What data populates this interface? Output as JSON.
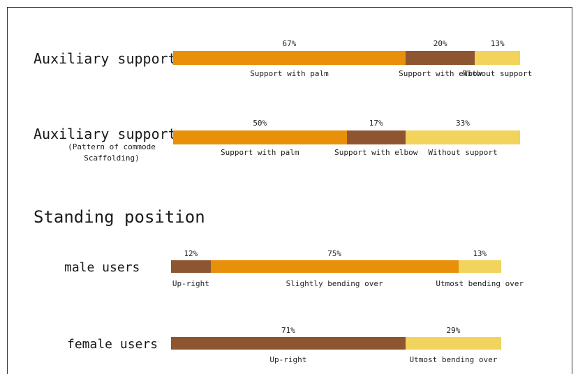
{
  "section_title": "Standing position",
  "colors": {
    "orange": "#E8900A",
    "brown": "#8E5630",
    "yellow": "#F2D35C"
  },
  "chart_data": [
    {
      "type": "bar",
      "orientation": "horizontal-stacked-100",
      "row_label": "Auxiliary support",
      "row_sublabel": "",
      "categories": [
        "Support with palm",
        "Support with elbow",
        "Without support"
      ],
      "values": [
        67,
        20,
        13
      ],
      "value_labels": [
        "67%",
        "20%",
        "13%"
      ],
      "colors": [
        "orange",
        "brown",
        "yellow"
      ]
    },
    {
      "type": "bar",
      "orientation": "horizontal-stacked-100",
      "row_label": "Auxiliary support",
      "row_sublabel": "(Pattern of commode Scaffolding)",
      "categories": [
        "Support with palm",
        "Support with elbow",
        "Without support"
      ],
      "values": [
        50,
        17,
        33
      ],
      "value_labels": [
        "50%",
        "17%",
        "33%"
      ],
      "colors": [
        "orange",
        "brown",
        "yellow"
      ]
    },
    {
      "type": "bar",
      "orientation": "horizontal-stacked-100",
      "row_label": "male users",
      "row_sublabel": "",
      "categories": [
        "Up-right",
        "Slightly bending over",
        "Utmost bending over"
      ],
      "values": [
        12,
        75,
        13
      ],
      "value_labels": [
        "12%",
        "75%",
        "13%"
      ],
      "colors": [
        "brown",
        "orange",
        "yellow"
      ]
    },
    {
      "type": "bar",
      "orientation": "horizontal-stacked-100",
      "row_label": "female users",
      "row_sublabel": "",
      "categories": [
        "Up-right",
        "Utmost bending over"
      ],
      "values": [
        71,
        29
      ],
      "value_labels": [
        "71%",
        "29%"
      ],
      "colors": [
        "brown",
        "yellow"
      ]
    }
  ]
}
